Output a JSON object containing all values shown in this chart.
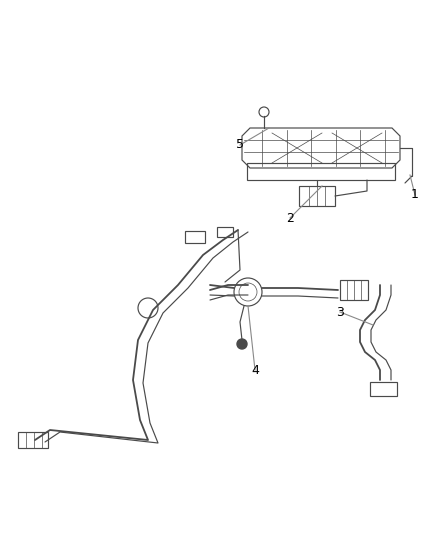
{
  "bg_color": "#ffffff",
  "line_color": "#4a4a4a",
  "label_color": "#000000",
  "leader_color": "#888888",
  "lw_main": 1.3,
  "lw_thin": 0.85,
  "lw_detail": 0.5
}
